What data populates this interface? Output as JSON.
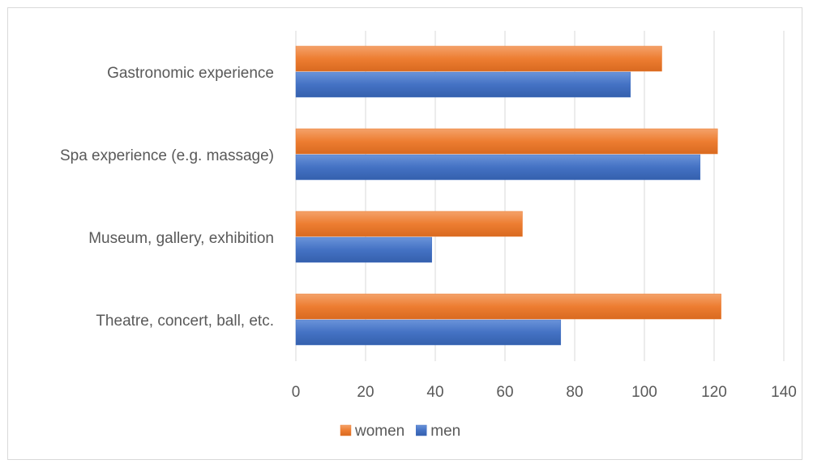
{
  "chart_data": {
    "type": "bar",
    "orientation": "horizontal",
    "title": "",
    "xlabel": "",
    "ylabel": "",
    "categories": [
      "Gastronomic experience",
      "Spa experience (e.g. massage)",
      "Museum, gallery, exhibition",
      "Theatre, concert, ball, etc."
    ],
    "series": [
      {
        "name": "women",
        "color": "#ed7d31",
        "values": [
          105,
          121,
          65,
          122
        ]
      },
      {
        "name": "men",
        "color": "#4472c4",
        "values": [
          96,
          116,
          39,
          76
        ]
      }
    ],
    "xlim": [
      0,
      140
    ],
    "xticks": [
      0,
      20,
      40,
      60,
      80,
      100,
      120,
      140
    ],
    "grid": "vertical",
    "legend": "bottom"
  }
}
